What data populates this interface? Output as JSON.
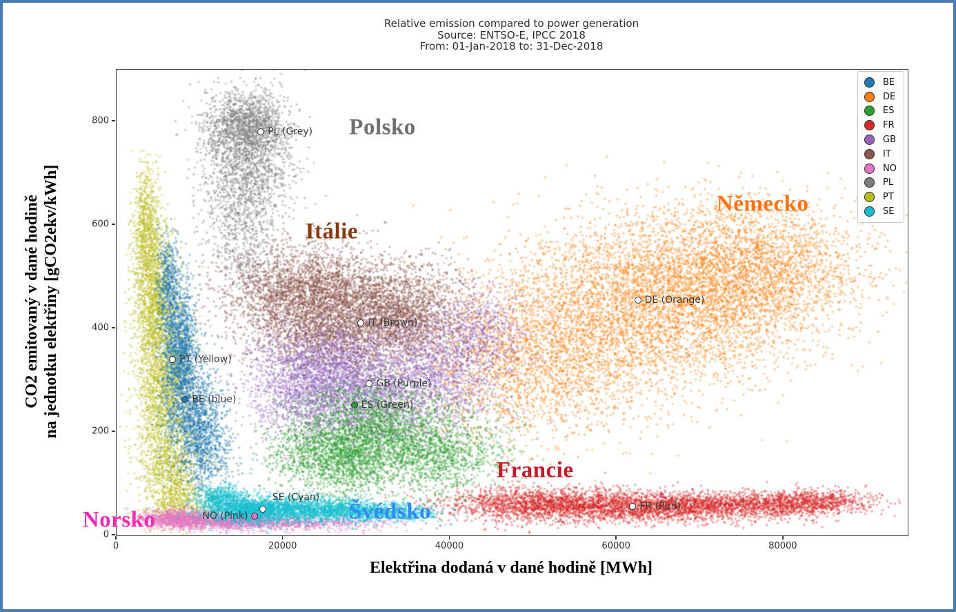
{
  "window": {
    "border_color": "#4a7cb2",
    "background": "#ffffff"
  },
  "title": {
    "line1": "Relative emission compared to power generation",
    "line2": "Source: ENTSO-E, IPCC 2018",
    "line3": "From: 01-Jan-2018 to: 31-Dec-2018"
  },
  "axes": {
    "x": {
      "label": "Elektřina dodaná v dané hodině [MWh]",
      "ticks": [
        0,
        20000,
        40000,
        60000,
        80000
      ],
      "range": [
        0,
        94900
      ]
    },
    "y": {
      "label_line1": "CO2 emitovaný v dané hodině",
      "label_line2": "na jednotku elektřiny [gCO2ekv/kWh]",
      "ticks": [
        0,
        200,
        400,
        600,
        800
      ],
      "range": [
        0,
        900
      ]
    }
  },
  "legend": {
    "items": [
      {
        "code": "BE",
        "color": "#1f77b4"
      },
      {
        "code": "DE",
        "color": "#ff7f0e"
      },
      {
        "code": "ES",
        "color": "#2ca02c"
      },
      {
        "code": "FR",
        "color": "#d62728"
      },
      {
        "code": "GB",
        "color": "#9467bd"
      },
      {
        "code": "IT",
        "color": "#8c564b"
      },
      {
        "code": "NO",
        "color": "#e377c2"
      },
      {
        "code": "PL",
        "color": "#7f7f7f"
      },
      {
        "code": "PT",
        "color": "#bcbd22"
      },
      {
        "code": "SE",
        "color": "#17becf"
      }
    ]
  },
  "chart_data": {
    "type": "scatter",
    "title": "Relative emission compared to power generation",
    "subtitle": "Source: ENTSO-E, IPCC 2018 | From: 01-Jan-2018 to: 31-Dec-2018",
    "xlabel": "Elektřina dodaná v dané hodině [MWh]",
    "ylabel": "CO2 emitovaný v dané hodině na jednotku elektřiny [gCO2ekv/kWh]",
    "xlim": [
      0,
      94900
    ],
    "ylim": [
      0,
      900
    ],
    "grid": false,
    "legend_position": "upper right",
    "point_alpha": 0.4,
    "point_radius_px": 1.7,
    "draw_order": [
      "DE",
      "FR",
      "PL",
      "IT",
      "GB",
      "ES",
      "PT",
      "BE",
      "NO",
      "SE"
    ],
    "series": [
      {
        "code": "BE",
        "color": "#1f77b4",
        "mean": {
          "x": 8300,
          "y": 263
        },
        "extent": {
          "x": [
            3500,
            13500
          ],
          "y": [
            120,
            560
          ]
        },
        "clusters": [
          {
            "cx": 6200,
            "cy": 490,
            "sx": 700,
            "sy": 45,
            "n": 450
          },
          {
            "cx": 7600,
            "cy": 360,
            "sx": 1100,
            "sy": 65,
            "n": 1300
          },
          {
            "cx": 9200,
            "cy": 230,
            "sx": 1600,
            "sy": 55,
            "n": 1100
          },
          {
            "cx": 11000,
            "cy": 160,
            "sx": 1500,
            "sy": 35,
            "n": 400
          }
        ]
      },
      {
        "code": "DE",
        "color": "#ff7f0e",
        "mean": {
          "x": 62600,
          "y": 455
        },
        "extent": {
          "x": [
            32000,
            91000
          ],
          "y": [
            150,
            680
          ]
        },
        "clusters": [
          {
            "cx": 49000,
            "cy": 330,
            "sx": 7000,
            "sy": 75,
            "n": 2000
          },
          {
            "cx": 60000,
            "cy": 430,
            "sx": 8500,
            "sy": 85,
            "n": 2800
          },
          {
            "cx": 70000,
            "cy": 480,
            "sx": 7500,
            "sy": 78,
            "n": 2700
          },
          {
            "cx": 78000,
            "cy": 520,
            "sx": 5800,
            "sy": 60,
            "n": 1600
          }
        ]
      },
      {
        "code": "ES",
        "color": "#2ca02c",
        "mean": {
          "x": 28600,
          "y": 252
        },
        "extent": {
          "x": [
            19500,
            46500
          ],
          "y": [
            80,
            300
          ]
        },
        "clusters": [
          {
            "cx": 27000,
            "cy": 160,
            "sx": 4200,
            "sy": 40,
            "n": 2000
          },
          {
            "cx": 34000,
            "cy": 190,
            "sx": 4800,
            "sy": 45,
            "n": 1400
          },
          {
            "cx": 40000,
            "cy": 150,
            "sx": 3500,
            "sy": 35,
            "n": 600
          },
          {
            "cx": 30000,
            "cy": 250,
            "sx": 4000,
            "sy": 30,
            "n": 400
          }
        ]
      },
      {
        "code": "FR",
        "color": "#d62728",
        "mean": {
          "x": 62000,
          "y": 56
        },
        "extent": {
          "x": [
            37500,
            90000
          ],
          "y": [
            15,
            115
          ]
        },
        "clusters": [
          {
            "cx": 50000,
            "cy": 62,
            "sx": 5500,
            "sy": 17,
            "n": 1500
          },
          {
            "cx": 62000,
            "cy": 55,
            "sx": 7000,
            "sy": 15,
            "n": 1800
          },
          {
            "cx": 75000,
            "cy": 58,
            "sx": 7000,
            "sy": 13,
            "n": 1500
          },
          {
            "cx": 84000,
            "cy": 68,
            "sx": 3500,
            "sy": 10,
            "n": 500
          }
        ]
      },
      {
        "code": "GB",
        "color": "#9467bd",
        "mean": {
          "x": 30400,
          "y": 293
        },
        "extent": {
          "x": [
            14500,
            48000
          ],
          "y": [
            100,
            460
          ]
        },
        "clusters": [
          {
            "cx": 24000,
            "cy": 300,
            "sx": 4200,
            "sy": 55,
            "n": 2200
          },
          {
            "cx": 31000,
            "cy": 270,
            "sx": 6000,
            "sy": 55,
            "n": 2200
          },
          {
            "cx": 38000,
            "cy": 330,
            "sx": 4500,
            "sy": 55,
            "n": 1000
          },
          {
            "cx": 44000,
            "cy": 395,
            "sx": 2800,
            "sy": 45,
            "n": 500
          }
        ]
      },
      {
        "code": "IT",
        "color": "#8c564b",
        "mean": {
          "x": 29400,
          "y": 411
        },
        "extent": {
          "x": [
            11000,
            44000
          ],
          "y": [
            260,
            590
          ]
        },
        "clusters": [
          {
            "cx": 22000,
            "cy": 470,
            "sx": 4500,
            "sy": 45,
            "n": 2000
          },
          {
            "cx": 29000,
            "cy": 440,
            "sx": 5500,
            "sy": 50,
            "n": 2200
          },
          {
            "cx": 35000,
            "cy": 420,
            "sx": 3500,
            "sy": 45,
            "n": 1200
          },
          {
            "cx": 25000,
            "cy": 370,
            "sx": 4500,
            "sy": 35,
            "n": 800
          }
        ]
      },
      {
        "code": "NO",
        "color": "#e377c2",
        "mean": {
          "x": 16500,
          "y": 37
        },
        "extent": {
          "x": [
            2000,
            40000
          ],
          "y": [
            5,
            55
          ]
        },
        "clusters": [
          {
            "cx": 7500,
            "cy": 32,
            "sx": 2200,
            "sy": 9,
            "n": 1000
          },
          {
            "cx": 13500,
            "cy": 26,
            "sx": 3500,
            "sy": 8,
            "n": 900
          },
          {
            "cx": 22000,
            "cy": 24,
            "sx": 5500,
            "sy": 7,
            "n": 600
          }
        ]
      },
      {
        "code": "PL",
        "color": "#7f7f7f",
        "mean": {
          "x": 17400,
          "y": 780
        },
        "extent": {
          "x": [
            10000,
            24500
          ],
          "y": [
            500,
            890
          ]
        },
        "clusters": [
          {
            "cx": 15500,
            "cy": 790,
            "sx": 2500,
            "sy": 35,
            "n": 1600
          },
          {
            "cx": 15800,
            "cy": 700,
            "sx": 2700,
            "sy": 40,
            "n": 900
          },
          {
            "cx": 15200,
            "cy": 600,
            "sx": 2400,
            "sy": 45,
            "n": 450
          },
          {
            "cx": 15500,
            "cy": 525,
            "sx": 1800,
            "sy": 30,
            "n": 150
          }
        ]
      },
      {
        "code": "PT",
        "color": "#bcbd22",
        "mean": {
          "x": 6800,
          "y": 340
        },
        "extent": {
          "x": [
            1500,
            12000
          ],
          "y": [
            40,
            660
          ]
        },
        "clusters": [
          {
            "cx": 3500,
            "cy": 600,
            "sx": 800,
            "sy": 60,
            "n": 700
          },
          {
            "cx": 4600,
            "cy": 450,
            "sx": 1300,
            "sy": 80,
            "n": 1500
          },
          {
            "cx": 5800,
            "cy": 280,
            "sx": 1800,
            "sy": 80,
            "n": 1600
          },
          {
            "cx": 6500,
            "cy": 120,
            "sx": 1800,
            "sy": 45,
            "n": 900
          },
          {
            "cx": 8000,
            "cy": 55,
            "sx": 2000,
            "sy": 22,
            "n": 400
          }
        ]
      },
      {
        "code": "SE",
        "color": "#17becf",
        "mean": {
          "x": 17600,
          "y": 51
        },
        "extent": {
          "x": [
            9500,
            41000
          ],
          "y": [
            15,
            95
          ]
        },
        "clusters": [
          {
            "cx": 12500,
            "cy": 72,
            "sx": 1400,
            "sy": 13,
            "n": 500
          },
          {
            "cx": 16000,
            "cy": 48,
            "sx": 2800,
            "sy": 13,
            "n": 1500
          },
          {
            "cx": 23000,
            "cy": 50,
            "sx": 4200,
            "sy": 12,
            "n": 1500
          },
          {
            "cx": 31000,
            "cy": 45,
            "sx": 4000,
            "sy": 10,
            "n": 800
          }
        ]
      }
    ],
    "annotations": [
      {
        "code": "PL",
        "text": "PL (Grey)",
        "x": 17400,
        "y": 780,
        "marker_fill": "#ffffff",
        "side": "right"
      },
      {
        "code": "DE",
        "text": "DE (Orange)",
        "x": 62600,
        "y": 455,
        "marker_fill": "#ffffff",
        "side": "right"
      },
      {
        "code": "IT",
        "text": "IT (Brown)",
        "x": 29400,
        "y": 411,
        "marker_fill": "#ffffff",
        "side": "right"
      },
      {
        "code": "GB",
        "text": "GB (Purple)",
        "x": 30400,
        "y": 293,
        "marker_fill": "#ffffff",
        "side": "right"
      },
      {
        "code": "ES",
        "text": "ES (Green)",
        "x": 28600,
        "y": 252,
        "marker_fill": "#2ca02c",
        "side": "right"
      },
      {
        "code": "PT",
        "text": "PT (Yellow)",
        "x": 6800,
        "y": 340,
        "marker_fill": "#ffffff",
        "side": "right"
      },
      {
        "code": "BE",
        "text": "BE (blue)",
        "x": 8300,
        "y": 263,
        "marker_fill": "#1f77b4",
        "side": "right"
      },
      {
        "code": "FR",
        "text": "FR (Red)",
        "x": 62000,
        "y": 56,
        "marker_fill": "#ffffff",
        "side": "right"
      },
      {
        "code": "SE",
        "text": "SE (Cyan)",
        "x": 17600,
        "y": 51,
        "marker_fill": "#ffffff",
        "side": "right",
        "text_dx": 4,
        "text_dy": -17
      },
      {
        "code": "NO",
        "text": "NO (Pink)",
        "x": 16500,
        "y": 37,
        "marker_fill": "#e377c2",
        "side": "left"
      }
    ],
    "country_labels": [
      {
        "text": "Polsko",
        "color": "#6f6f6f",
        "x": 31900,
        "y": 788
      },
      {
        "text": "Itálie",
        "color": "#8a3c0f",
        "x": 25800,
        "y": 587
      },
      {
        "text": "Německo",
        "color": "#ff7310",
        "x": 77500,
        "y": 640
      },
      {
        "text": "Francie",
        "color": "#c21b2a",
        "x": 50200,
        "y": 125
      },
      {
        "text": "Norsko",
        "color": "#f42cb4",
        "x": 300,
        "y": 29
      },
      {
        "text": "Švédsko",
        "color": "#2e8bf7",
        "x": 32800,
        "y": 45
      }
    ]
  }
}
